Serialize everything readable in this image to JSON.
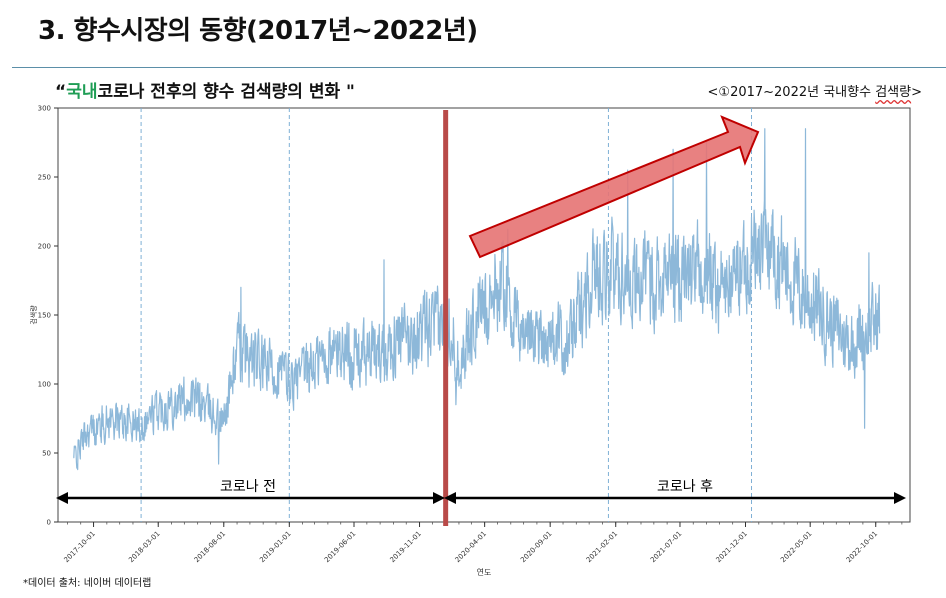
{
  "slide": {
    "title": "3. 향수시장의 동향(2017년~2022년)",
    "chart_heading_open": "“",
    "chart_heading_highlight": "국내",
    "chart_heading_rest": "코로나 전후의 향수 검색량의 변화 \"",
    "caption_prefix": "<①2017~2022년 국내향수 ",
    "caption_underlined": "검색량",
    "caption_suffix": ">",
    "source_note": "*데이터 출처: 네이버 데이터랩"
  },
  "colors": {
    "series_line": "#8db8d9",
    "dashed_lines": "#7fb0d5",
    "covid_divider": "#b94a48",
    "trend_arrow_fill": "#e57373",
    "trend_arrow_stroke": "#c00000",
    "highlight_text": "#1f9d55"
  },
  "chart_data": {
    "type": "line",
    "xlabel": "연도",
    "ylabel": "검색량",
    "x_range": [
      "2017-07-10",
      "2022-12-20"
    ],
    "ylim": [
      0,
      300
    ],
    "y_ticks": [
      0,
      50,
      100,
      150,
      200,
      250,
      300
    ],
    "x_ticks": [
      "2017-10-01",
      "2018-03-01",
      "2018-08-01",
      "2019-01-01",
      "2019-06-01",
      "2019-11-01",
      "2020-04-01",
      "2020-09-01",
      "2021-02-01",
      "2021-07-01",
      "2021-12-01",
      "2022-05-01",
      "2022-10-01"
    ],
    "grid": false,
    "series": [
      {
        "trend": [
          [
            "2017-08-15",
            45
          ],
          [
            "2017-09-15",
            65
          ],
          [
            "2017-11-15",
            75
          ],
          [
            "2018-01-15",
            70
          ],
          [
            "2018-03-15",
            85
          ],
          [
            "2018-05-15",
            90
          ],
          [
            "2018-06-15",
            85
          ],
          [
            "2018-08-01",
            72
          ],
          [
            "2018-09-01",
            125
          ],
          [
            "2018-10-15",
            115
          ],
          [
            "2018-12-01",
            110
          ],
          [
            "2019-01-15",
            100
          ],
          [
            "2019-03-01",
            115
          ],
          [
            "2019-05-01",
            125
          ],
          [
            "2019-07-01",
            120
          ],
          [
            "2019-09-01",
            130
          ],
          [
            "2019-11-01",
            135
          ],
          [
            "2019-12-01",
            140
          ],
          [
            "2020-01-10",
            145
          ],
          [
            "2020-02-01",
            115
          ],
          [
            "2020-03-15",
            150
          ],
          [
            "2020-04-15",
            165
          ],
          [
            "2020-05-15",
            175
          ],
          [
            "2020-06-15",
            140
          ],
          [
            "2020-08-15",
            135
          ],
          [
            "2020-10-15",
            130
          ],
          [
            "2020-12-15",
            185
          ],
          [
            "2021-02-15",
            180
          ],
          [
            "2021-04-15",
            175
          ],
          [
            "2021-06-15",
            180
          ],
          [
            "2021-08-15",
            180
          ],
          [
            "2021-10-15",
            170
          ],
          [
            "2021-12-15",
            195
          ],
          [
            "2022-02-01",
            200
          ],
          [
            "2022-04-01",
            170
          ],
          [
            "2022-06-01",
            150
          ],
          [
            "2022-08-01",
            130
          ],
          [
            "2022-09-15",
            140
          ],
          [
            "2022-10-10",
            150
          ]
        ],
        "peaks": [
          [
            "2018-09-10",
            170
          ],
          [
            "2019-08-10",
            190
          ],
          [
            "2020-05-25",
            212
          ],
          [
            "2021-03-01",
            255
          ],
          [
            "2021-06-15",
            270
          ],
          [
            "2021-09-01",
            275
          ],
          [
            "2022-01-15",
            285
          ],
          [
            "2022-04-20",
            285
          ],
          [
            "2022-09-15",
            195
          ]
        ],
        "troughs": [
          [
            "2017-08-25",
            38
          ],
          [
            "2018-07-20",
            42
          ],
          [
            "2020-01-25",
            85
          ],
          [
            "2022-09-05",
            68
          ]
        ]
      }
    ],
    "reference_lines": [
      "2018-01-20",
      "2019-01-01",
      "2021-01-15",
      "2021-12-15"
    ],
    "covid_divider": "2020-01-01",
    "annotations": {
      "before_label": "코로나 전",
      "after_label": "코로나 후"
    }
  }
}
